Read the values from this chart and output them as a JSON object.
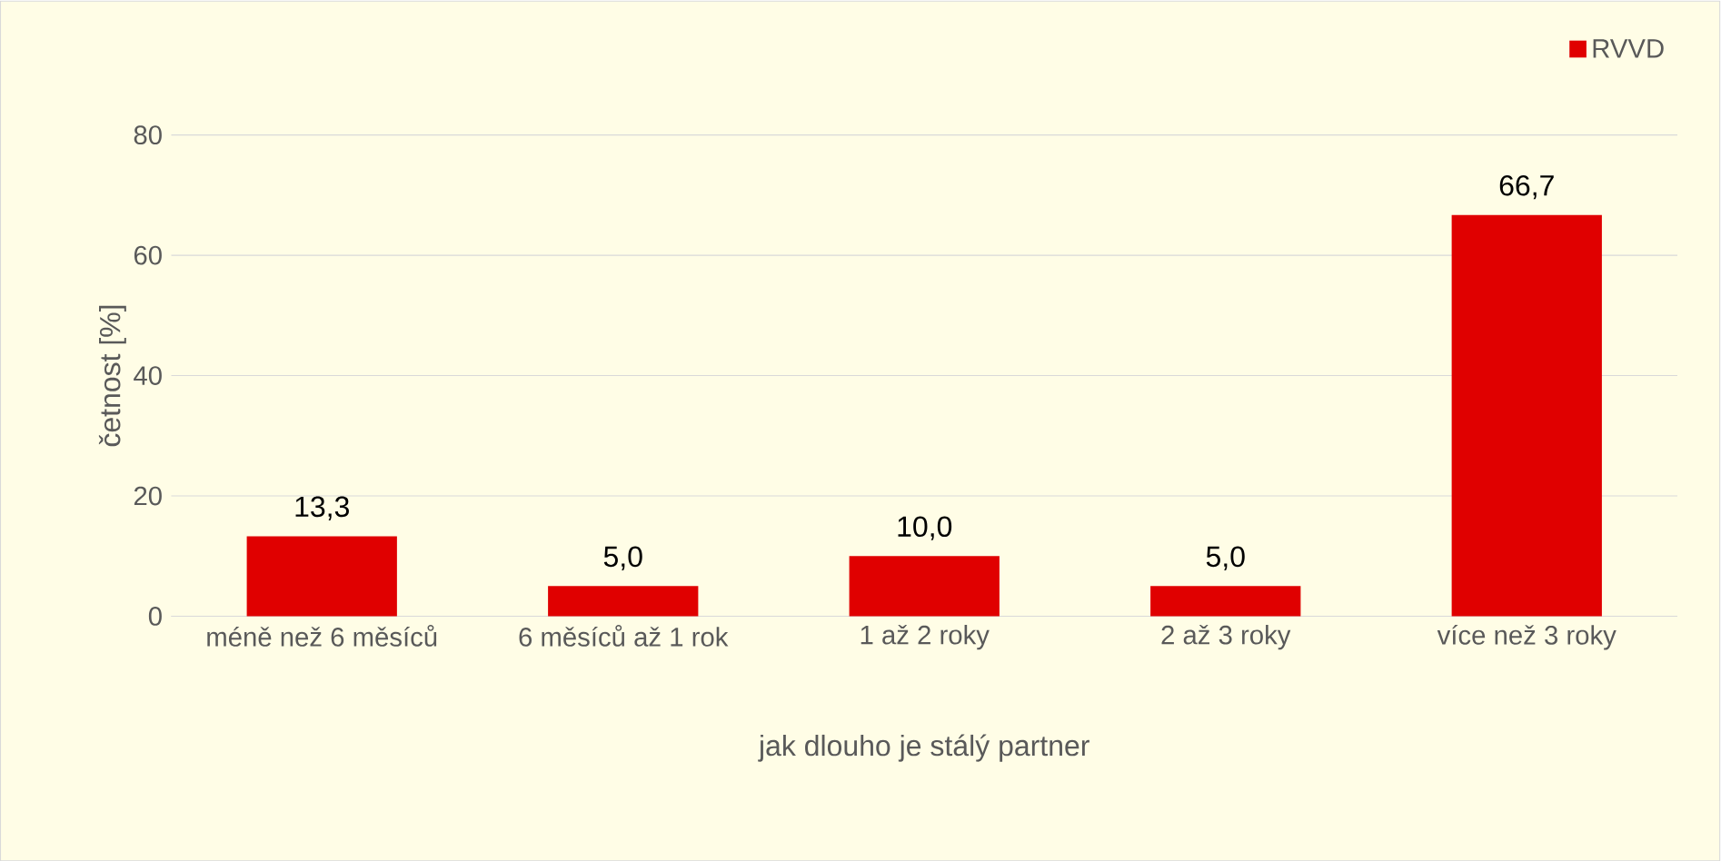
{
  "chart_data": {
    "type": "bar",
    "xlabel": "jak dlouho je stálý partner",
    "ylabel": "četnost [%]",
    "categories": [
      "méně než 6 měsíců",
      "6 měsíců až 1 rok",
      "1 až 2 roky",
      "2 až 3 roky",
      "více než 3 roky"
    ],
    "series": [
      {
        "name": "RVVD",
        "color": "#e00000",
        "values": [
          13.3,
          5.0,
          10.0,
          5.0,
          66.7
        ],
        "value_labels": [
          "13,3",
          "5,0",
          "10,0",
          "5,0",
          "66,7"
        ]
      }
    ],
    "ylim": [
      0,
      80
    ],
    "yticks": [
      0,
      20,
      40,
      60,
      80
    ],
    "grid": "y",
    "legend": "top right"
  }
}
